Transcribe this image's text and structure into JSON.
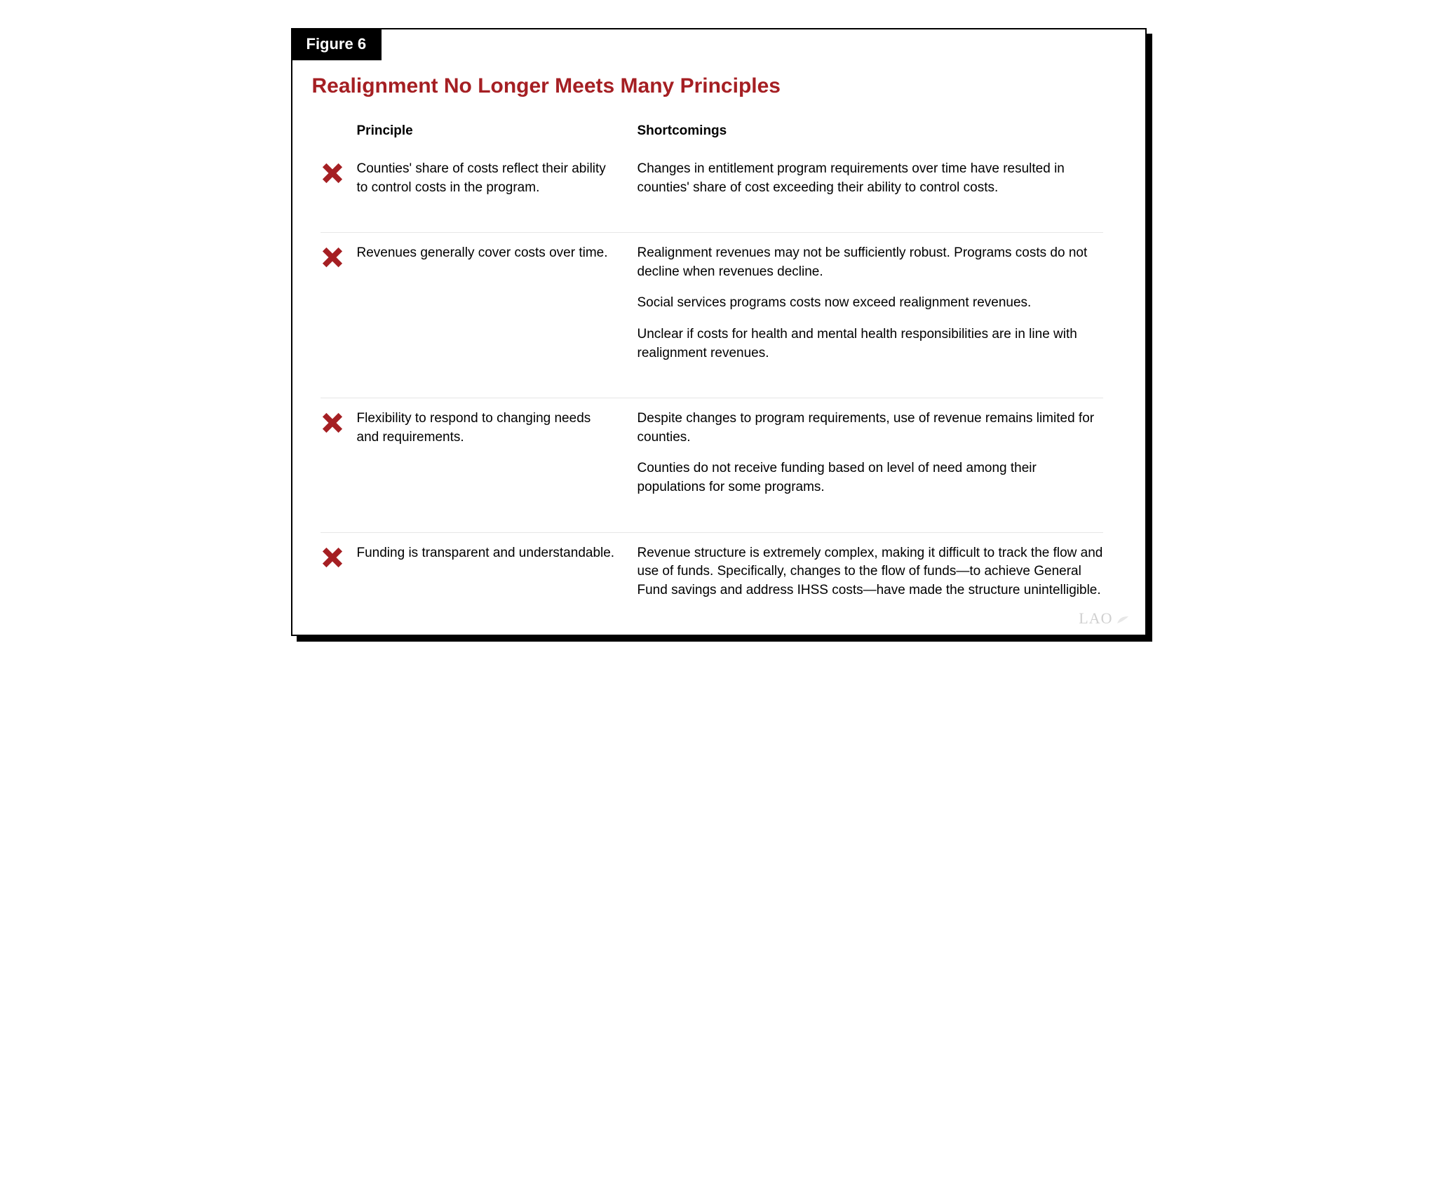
{
  "figure_label": "Figure 6",
  "title": "Realignment No Longer Meets Many Principles",
  "headers": {
    "principle": "Principle",
    "shortcomings": "Shortcomings"
  },
  "colors": {
    "accent": "#a51f23",
    "icon": "#a51f23",
    "text": "#000000",
    "divider": "#e6e6e6",
    "watermark": "#d0d0d0",
    "background": "#ffffff",
    "label_bg": "#000000",
    "label_text": "#ffffff"
  },
  "rows": [
    {
      "principle": "Counties' share of costs reflect their ability to control costs in the program.",
      "shortcomings": [
        "Changes in entitlement program requirements over time have resulted in counties' share of cost exceeding their ability to control costs."
      ]
    },
    {
      "principle": "Revenues generally cover costs over time.",
      "shortcomings": [
        "Realignment revenues may not be sufficiently robust. Programs costs do not decline when revenues decline.",
        "Social services programs costs now exceed realignment revenues.",
        "Unclear if costs for health and mental health responsibilities are in line with realignment revenues."
      ]
    },
    {
      "principle": "Flexibility to respond to changing needs and requirements.",
      "shortcomings": [
        "Despite changes to program requirements, use of revenue remains limited for counties.",
        "Counties do not receive funding based on level of need among their populations for some programs."
      ]
    },
    {
      "principle": "Funding is transparent and understandable.",
      "shortcomings": [
        "Revenue structure is extremely complex, making it difficult to track the flow and use of funds. Specifically, changes to the flow of funds—to achieve General Fund savings and address IHSS costs—have made the structure unintelligible."
      ]
    }
  ],
  "watermark": "LAO"
}
